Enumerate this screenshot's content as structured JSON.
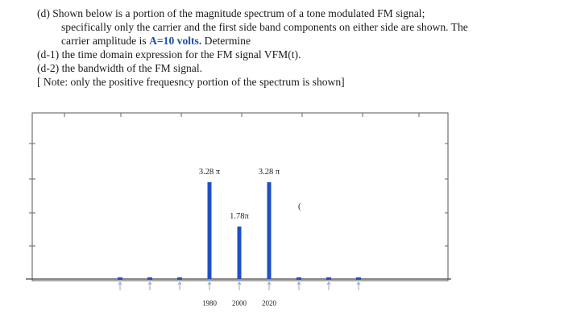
{
  "problem": {
    "line1": "(d) Shown below is a portion of the magnitude spectrum of a tone modulated FM signal;",
    "line2": "specifically only the carrier and the first side band components on either side are shown. The",
    "line3_pre": "carrier amplitude is ",
    "line3_amp": "A=10 volts.",
    "line3_post": " Determine",
    "d1": "(d-1) the time domain expression for the FM signal VFM(t).",
    "d2": "(d-2) the bandwidth of the FM signal.",
    "note": "[ Note: only the positive frequesncy portion of the spectrum is shown]"
  },
  "chart_data": {
    "type": "bar",
    "categories": [
      "1980",
      "2000",
      "2020"
    ],
    "values": [
      3.28,
      1.78,
      3.28
    ],
    "data_labels": [
      "3.28 π",
      "1.78π",
      "3.28 π"
    ],
    "stray_mark": "(",
    "title": "",
    "xlabel": "",
    "ylabel": "",
    "bar_color": "#1f4fc4"
  }
}
